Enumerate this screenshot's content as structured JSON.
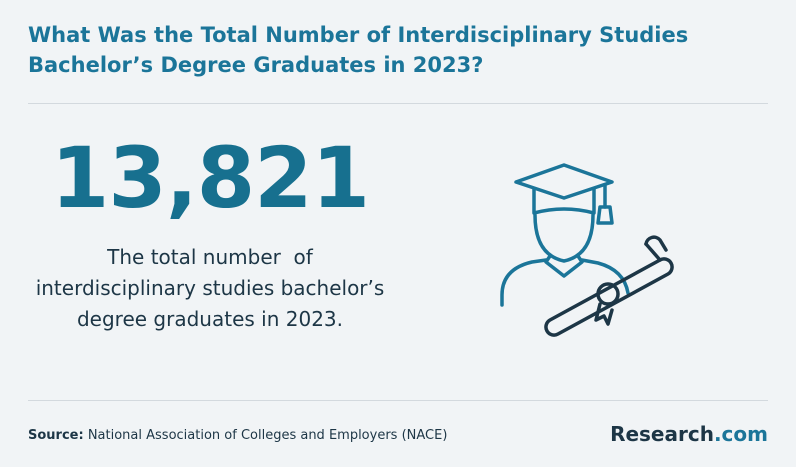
{
  "header": {
    "title": "What Was the Total Number of Interdisciplinary Studies Bachelor’s Degree Graduates in 2023?"
  },
  "stat": {
    "value": "13,821",
    "description": [
      "The total number  of",
      "interdisciplinary studies bachelor’s",
      "degree graduates in 2023."
    ]
  },
  "source": {
    "label": "Source:",
    "text": "National Association of Colleges and Employers (NACE)"
  },
  "brand": {
    "name": "Research",
    "suffix": ".com"
  }
}
